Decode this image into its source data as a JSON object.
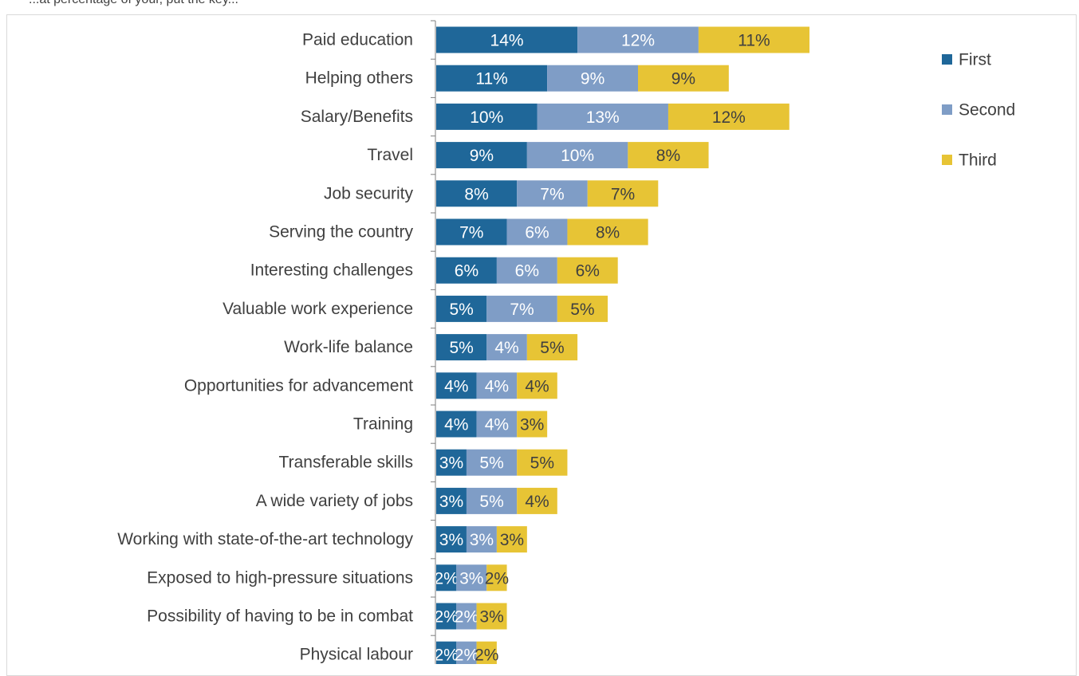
{
  "header": {
    "cut_text": "...at percentage of your, put the key..."
  },
  "colors": {
    "first": "#1f6799",
    "second": "#7f9dc6",
    "third": "#e7c435",
    "axis": "#7f7f7f"
  },
  "chart_data": {
    "type": "bar",
    "orientation": "horizontal",
    "stacked": true,
    "title": "",
    "xlabel": "",
    "ylabel": "",
    "categories": [
      "Paid education",
      "Helping others",
      "Salary/Benefits",
      "Travel",
      "Job security",
      "Serving the country",
      "Interesting challenges",
      "Valuable work experience",
      "Work-life balance",
      "Opportunities for advancement",
      "Training",
      "Transferable skills",
      "A wide variety of jobs",
      "Working with state-of-the-art technology",
      "Exposed to high-pressure situations",
      "Possibility of having to be in combat",
      "Physical labour"
    ],
    "series": [
      {
        "name": "First",
        "values": [
          14,
          11,
          10,
          9,
          8,
          7,
          6,
          5,
          5,
          4,
          4,
          3,
          3,
          3,
          2,
          2,
          2
        ]
      },
      {
        "name": "Second",
        "values": [
          12,
          9,
          13,
          10,
          7,
          6,
          6,
          7,
          4,
          4,
          4,
          5,
          5,
          3,
          3,
          2,
          2
        ]
      },
      {
        "name": "Third",
        "values": [
          11,
          9,
          12,
          8,
          7,
          8,
          6,
          5,
          5,
          4,
          3,
          5,
          4,
          3,
          2,
          3,
          2
        ]
      }
    ],
    "data_labels": {
      "First": [
        "14%",
        "11%",
        "10%",
        "9%",
        "8%",
        "7%",
        "6%",
        "5%",
        "5%",
        "4%",
        "4%",
        "3%",
        "3%",
        "3%",
        "2%",
        "2%",
        "2%"
      ],
      "Second": [
        "12%",
        "9%",
        "13%",
        "10%",
        "7%",
        "6%",
        "6%",
        "7%",
        "4%",
        "4%",
        "4%",
        "5%",
        "5%",
        "3%",
        "3%",
        "2%",
        "2%"
      ],
      "Third": [
        "11%",
        "9%",
        "12%",
        "8%",
        "7%",
        "8%",
        "6%",
        "5%",
        "5%",
        "4%",
        "3%",
        "5%",
        "4%",
        "3%",
        "2%",
        "3%",
        "2%"
      ]
    },
    "legend": {
      "position": "right",
      "entries": [
        "First",
        "Second",
        "Third"
      ]
    },
    "grid": false
  }
}
